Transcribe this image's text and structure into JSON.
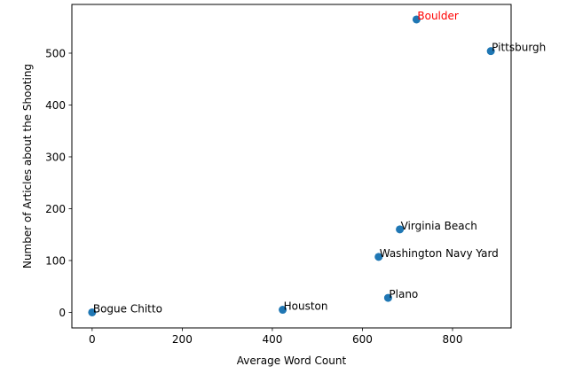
{
  "chart_data": {
    "type": "scatter",
    "xlabel": "Average Word Count",
    "ylabel": "Number of Articles about the Shooting",
    "xlim": [
      -45,
      930
    ],
    "ylim": [
      -30,
      594
    ],
    "xticks": [
      0,
      200,
      400,
      600,
      800
    ],
    "yticks": [
      0,
      100,
      200,
      300,
      400,
      500
    ],
    "grid": false,
    "point_color": "#1f77b4",
    "label_color": "#000000",
    "highlight_color": "#ff0000",
    "points": [
      {
        "label": "Boulder",
        "x": 720,
        "y": 565,
        "highlight": true
      },
      {
        "label": "Pittsburgh",
        "x": 885,
        "y": 504,
        "highlight": false
      },
      {
        "label": "Virginia Beach",
        "x": 683,
        "y": 160,
        "highlight": false
      },
      {
        "label": "Washington Navy Yard",
        "x": 636,
        "y": 107,
        "highlight": false
      },
      {
        "label": "Plano",
        "x": 657,
        "y": 28,
        "highlight": false
      },
      {
        "label": "Houston",
        "x": 423,
        "y": 5,
        "highlight": false
      },
      {
        "label": "Bogue Chitto",
        "x": 0,
        "y": 0,
        "highlight": false
      }
    ]
  }
}
